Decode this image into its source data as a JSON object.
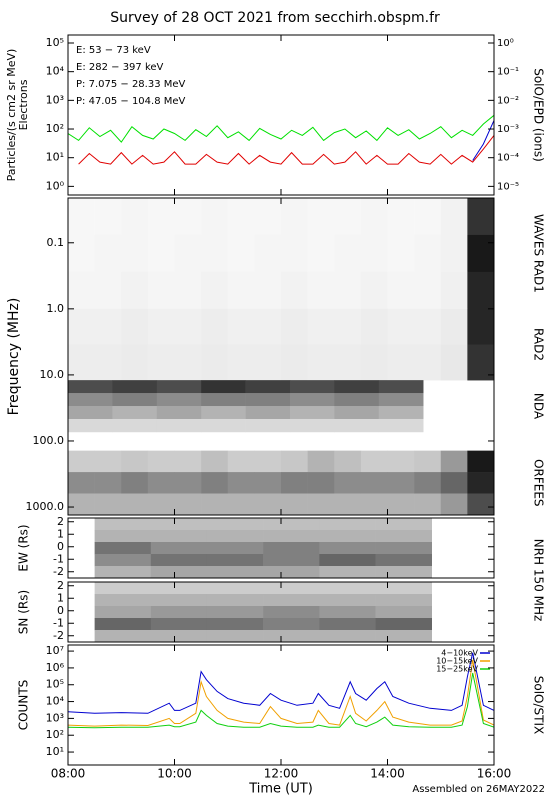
{
  "chart_data": [
    {
      "type": "line",
      "title": "Survey of 28 OCT 2021 from secchirh.obspm.fr",
      "y_label": "Particles/(s cm2 sr MeV)",
      "y_label2": "Electrons",
      "y2_label": "SolO/EPD (ions)",
      "log_scale": true,
      "ylim": [
        0.5,
        190000
      ],
      "yticks": [
        {
          "value": 1,
          "label": "10⁰"
        },
        {
          "value": 10,
          "label": "10¹"
        },
        {
          "value": 100,
          "label": "10²"
        },
        {
          "value": 1000,
          "label": "10³"
        },
        {
          "value": 10000,
          "label": "10⁴"
        },
        {
          "value": 100000,
          "label": "10⁵"
        }
      ],
      "y2lim": [
        5e-06,
        1.9
      ],
      "y2ticks": [
        {
          "value": 1e-05,
          "label": "10⁻⁵"
        },
        {
          "value": 0.0001,
          "label": "10⁻⁴"
        },
        {
          "value": 0.001,
          "label": "10⁻³"
        },
        {
          "value": 0.01,
          "label": "10⁻²"
        },
        {
          "value": 0.1,
          "label": "10⁻¹"
        },
        {
          "value": 1,
          "label": "10⁰"
        }
      ],
      "legend": "upper left",
      "x": [
        8,
        8.2,
        8.4,
        8.6,
        8.8,
        9,
        9.2,
        9.4,
        9.6,
        9.8,
        10,
        10.2,
        10.4,
        10.6,
        10.8,
        11,
        11.2,
        11.4,
        11.6,
        11.8,
        12,
        12.2,
        12.4,
        12.6,
        12.8,
        13,
        13.2,
        13.4,
        13.6,
        13.8,
        14,
        14.2,
        14.4,
        14.6,
        14.8,
        15,
        15.2,
        15.4,
        15.6,
        15.8,
        16
      ],
      "series": [
        {
          "name": "E: 53 − 73 keV",
          "color": "#00e000",
          "values": [
            70,
            40,
            110,
            55,
            90,
            35,
            120,
            60,
            45,
            100,
            70,
            40,
            95,
            55,
            130,
            50,
            80,
            40,
            105,
            65,
            45,
            90,
            60,
            115,
            40,
            75,
            100,
            50,
            85,
            40,
            110,
            60,
            95,
            45,
            70,
            120,
            50,
            90,
            60,
            150,
            300
          ]
        },
        {
          "name": "E: 282 − 397 keV",
          "color": "#e00000",
          "values": [
            null,
            6,
            14,
            7,
            6,
            15,
            6,
            12,
            6,
            7,
            16,
            6,
            6,
            13,
            7,
            6,
            14,
            6,
            12,
            7,
            6,
            15,
            6,
            6,
            13,
            6,
            7,
            16,
            6,
            12,
            6,
            6,
            14,
            7,
            6,
            13,
            6,
            12,
            7,
            20,
            60
          ]
        },
        {
          "name": "P: 7.075 − 28.33 MeV",
          "color": "#000000",
          "axis": "y2",
          "values": [
            null,
            null,
            null,
            null,
            null,
            null,
            null,
            null,
            null,
            null,
            null,
            null,
            null,
            null,
            null,
            null,
            null,
            null,
            null,
            null,
            null,
            null,
            null,
            null,
            null,
            null,
            null,
            null,
            null,
            null,
            null,
            null,
            null,
            null,
            null,
            null,
            null,
            null,
            null,
            null,
            null
          ]
        },
        {
          "name": "P: 47.05 − 104.8 MeV",
          "color": "#0000d0",
          "axis": "y2",
          "values": [
            null,
            null,
            null,
            null,
            null,
            null,
            null,
            null,
            null,
            null,
            null,
            null,
            null,
            null,
            null,
            null,
            null,
            null,
            null,
            null,
            null,
            null,
            null,
            null,
            null,
            null,
            null,
            null,
            null,
            null,
            null,
            null,
            null,
            null,
            null,
            null,
            null,
            null,
            8e-05,
            0.0003,
            0.002
          ]
        }
      ]
    },
    {
      "type": "heatmap",
      "y_label": "Frequency (MHz)",
      "log_scale": true,
      "y_inverted": true,
      "ylim": [
        0.021,
        1320
      ],
      "yticks": [
        0.1,
        {
          "value": 1,
          "label": "1.0"
        },
        {
          "value": 10,
          "label": "10.0"
        },
        {
          "value": 100,
          "label": "100.0"
        },
        {
          "value": 1000,
          "label": "1000.0"
        }
      ],
      "bands": [
        {
          "name": "WAVES RAD1",
          "freq_range": [
            0.021,
            1
          ],
          "x_range": [
            8,
            16
          ],
          "intensity": [
            [
              0.03,
              0.03,
              0.04,
              0.03,
              0.03,
              0.04,
              0.03,
              0.03,
              0.04,
              0.03,
              0.03,
              0.04,
              0.03,
              0.03,
              0.05,
              0.8
            ],
            [
              0.03,
              0.04,
              0.04,
              0.03,
              0.04,
              0.04,
              0.03,
              0.04,
              0.04,
              0.03,
              0.04,
              0.04,
              0.03,
              0.04,
              0.05,
              0.9
            ],
            [
              0.04,
              0.04,
              0.05,
              0.04,
              0.04,
              0.05,
              0.04,
              0.04,
              0.05,
              0.04,
              0.04,
              0.05,
              0.04,
              0.04,
              0.06,
              0.85
            ]
          ]
        },
        {
          "name": "RAD2",
          "freq_range": [
            1,
            12
          ],
          "x_range": [
            8,
            16
          ],
          "intensity": [
            [
              0.06,
              0.06,
              0.07,
              0.06,
              0.06,
              0.07,
              0.06,
              0.06,
              0.07,
              0.06,
              0.06,
              0.07,
              0.06,
              0.06,
              0.08,
              0.85
            ],
            [
              0.07,
              0.07,
              0.08,
              0.07,
              0.07,
              0.08,
              0.07,
              0.07,
              0.08,
              0.07,
              0.07,
              0.08,
              0.07,
              0.07,
              0.09,
              0.8
            ]
          ]
        },
        {
          "name": "NDA",
          "freq_range": [
            12,
            73
          ],
          "x_range": [
            8,
            14.67
          ],
          "intensity": [
            [
              0.7,
              0.75,
              0.7,
              0.8,
              0.75,
              0.7,
              0.75,
              0.7
            ],
            [
              0.45,
              0.5,
              0.45,
              0.5,
              0.5,
              0.45,
              0.5,
              0.45
            ],
            [
              0.35,
              0.3,
              0.35,
              0.3,
              0.35,
              0.3,
              0.35,
              0.3
            ],
            [
              0.15,
              0.15,
              0.15,
              0.15,
              0.15,
              0.15,
              0.15,
              0.15
            ]
          ]
        },
        {
          "name": "ORFEES",
          "freq_range": [
            140,
            1320
          ],
          "x_range": [
            8,
            16
          ],
          "intensity": [
            [
              0.2,
              0.2,
              0.22,
              0.2,
              0.2,
              0.25,
              0.2,
              0.2,
              0.22,
              0.3,
              0.25,
              0.2,
              0.2,
              0.22,
              0.4,
              0.9
            ],
            [
              0.45,
              0.45,
              0.5,
              0.45,
              0.45,
              0.5,
              0.45,
              0.45,
              0.5,
              0.5,
              0.45,
              0.45,
              0.45,
              0.5,
              0.6,
              0.85
            ],
            [
              0.3,
              0.3,
              0.3,
              0.3,
              0.3,
              0.3,
              0.3,
              0.3,
              0.3,
              0.3,
              0.3,
              0.3,
              0.3,
              0.3,
              0.4,
              0.7
            ]
          ]
        }
      ]
    },
    {
      "type": "heatmap",
      "y_label": "EW (Rs)",
      "instrument": "NRH 150 MHz",
      "ylim": [
        -2.5,
        2.3
      ],
      "yticks": [
        -2,
        -1,
        0,
        1,
        2
      ],
      "x_range": [
        8.5,
        14.83
      ],
      "intensity": [
        [
          0.25,
          0.25,
          0.25,
          0.25,
          0.25,
          0.25
        ],
        [
          0.3,
          0.3,
          0.3,
          0.3,
          0.3,
          0.3
        ],
        [
          0.55,
          0.45,
          0.45,
          0.5,
          0.45,
          0.45
        ],
        [
          0.45,
          0.55,
          0.55,
          0.5,
          0.6,
          0.55
        ],
        [
          0.3,
          0.35,
          0.35,
          0.35,
          0.3,
          0.3
        ]
      ]
    },
    {
      "type": "heatmap",
      "y_label": "SN (Rs)",
      "ylim": [
        -2.5,
        2.3
      ],
      "yticks": [
        -2,
        -1,
        0,
        1,
        2
      ],
      "x_range": [
        8.5,
        14.83
      ],
      "intensity": [
        [
          0.2,
          0.2,
          0.2,
          0.2,
          0.2,
          0.2
        ],
        [
          0.3,
          0.3,
          0.3,
          0.3,
          0.3,
          0.3
        ],
        [
          0.35,
          0.4,
          0.4,
          0.45,
          0.4,
          0.35
        ],
        [
          0.6,
          0.55,
          0.55,
          0.5,
          0.55,
          0.6
        ],
        [
          0.3,
          0.3,
          0.3,
          0.3,
          0.3,
          0.3
        ]
      ]
    },
    {
      "type": "line",
      "y_label": "COUNTS",
      "y2_label": "SolO/STIX",
      "x_label": "Time (UT)",
      "note": "Assembled on 26MAY2022",
      "log_scale": true,
      "ylim": [
        1.7,
        23000000
      ],
      "yticks": [
        {
          "value": 10,
          "label": "10¹"
        },
        {
          "value": 100,
          "label": "10²"
        },
        {
          "value": 1000,
          "label": "10³"
        },
        {
          "value": 10000,
          "label": "10⁴"
        },
        {
          "value": 100000,
          "label": "10⁵"
        },
        {
          "value": 1000000,
          "label": "10⁶"
        },
        {
          "value": 10000000,
          "label": "10⁷"
        }
      ],
      "xlim": [
        8,
        16
      ],
      "xticks": [
        {
          "value": 8,
          "label": "08:00"
        },
        {
          "value": 10,
          "label": "10:00"
        },
        {
          "value": 12,
          "label": "12:00"
        },
        {
          "value": 14,
          "label": "14:00"
        },
        {
          "value": 16,
          "label": "16:00"
        }
      ],
      "legend": "upper right",
      "x": [
        8.0,
        8.5,
        9.0,
        9.5,
        9.9,
        10.0,
        10.1,
        10.4,
        10.5,
        10.6,
        10.8,
        11.0,
        11.3,
        11.6,
        11.8,
        12.0,
        12.3,
        12.6,
        12.7,
        12.9,
        13.1,
        13.3,
        13.4,
        13.6,
        13.8,
        13.95,
        14.1,
        14.4,
        14.8,
        15.2,
        15.4,
        15.5,
        15.6,
        15.8,
        16.0
      ],
      "series": [
        {
          "name": "4−10keV",
          "color": "#0000d0",
          "values": [
            2500,
            2000,
            2200,
            2000,
            8000,
            3000,
            3000,
            8000,
            600000,
            200000,
            40000,
            15000,
            8000,
            6000,
            30000,
            12000,
            6000,
            8000,
            30000,
            6000,
            4000,
            150000,
            30000,
            12000,
            60000,
            150000,
            20000,
            8000,
            4000,
            3000,
            6000,
            300000,
            8000000,
            6000,
            3000
          ]
        },
        {
          "name": "10−15keV",
          "color": "#f0a000",
          "values": [
            400,
            350,
            400,
            380,
            1000,
            500,
            500,
            2000,
            150000,
            20000,
            3000,
            1000,
            600,
            500,
            5000,
            1000,
            500,
            600,
            3000,
            500,
            400,
            20000,
            2000,
            700,
            3000,
            10000,
            1200,
            600,
            400,
            400,
            700,
            20000,
            3000000,
            800,
            400
          ]
        },
        {
          "name": "15−25keV",
          "color": "#10d010",
          "values": [
            300,
            280,
            300,
            300,
            400,
            320,
            320,
            600,
            3000,
            1500,
            500,
            350,
            300,
            300,
            500,
            350,
            300,
            300,
            400,
            300,
            300,
            1500,
            500,
            320,
            600,
            1200,
            400,
            320,
            300,
            300,
            400,
            5000,
            500000,
            500,
            300
          ]
        }
      ]
    }
  ]
}
